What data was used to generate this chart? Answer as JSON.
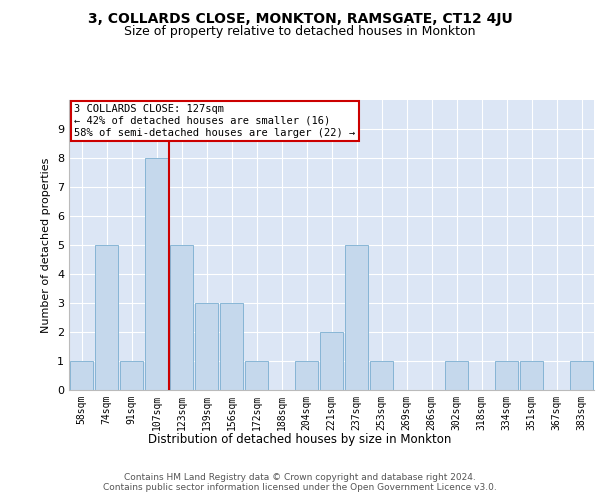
{
  "title": "3, COLLARDS CLOSE, MONKTON, RAMSGATE, CT12 4JU",
  "subtitle": "Size of property relative to detached houses in Monkton",
  "xlabel": "Distribution of detached houses by size in Monkton",
  "ylabel": "Number of detached properties",
  "categories": [
    "58sqm",
    "74sqm",
    "91sqm",
    "107sqm",
    "123sqm",
    "139sqm",
    "156sqm",
    "172sqm",
    "188sqm",
    "204sqm",
    "221sqm",
    "237sqm",
    "253sqm",
    "269sqm",
    "286sqm",
    "302sqm",
    "318sqm",
    "334sqm",
    "351sqm",
    "367sqm",
    "383sqm"
  ],
  "values": [
    1,
    5,
    1,
    8,
    5,
    3,
    3,
    1,
    0,
    1,
    2,
    5,
    1,
    0,
    0,
    1,
    0,
    1,
    1,
    0,
    1
  ],
  "bar_color": "#c5d8ec",
  "bar_edge_color": "#7aaed0",
  "subject_line_color": "#cc0000",
  "annotation_text": "3 COLLARDS CLOSE: 127sqm\n← 42% of detached houses are smaller (16)\n58% of semi-detached houses are larger (22) →",
  "annotation_box_color": "#cc0000",
  "ylim": [
    0,
    10
  ],
  "yticks": [
    0,
    1,
    2,
    3,
    4,
    5,
    6,
    7,
    8,
    9
  ],
  "background_color": "#dce6f5",
  "grid_color": "#ffffff",
  "footer": "Contains HM Land Registry data © Crown copyright and database right 2024.\nContains public sector information licensed under the Open Government Licence v3.0.",
  "title_fontsize": 10,
  "subtitle_fontsize": 9,
  "xlabel_fontsize": 8.5,
  "ylabel_fontsize": 8,
  "tick_fontsize": 7,
  "annotation_fontsize": 7.5,
  "footer_fontsize": 6.5
}
